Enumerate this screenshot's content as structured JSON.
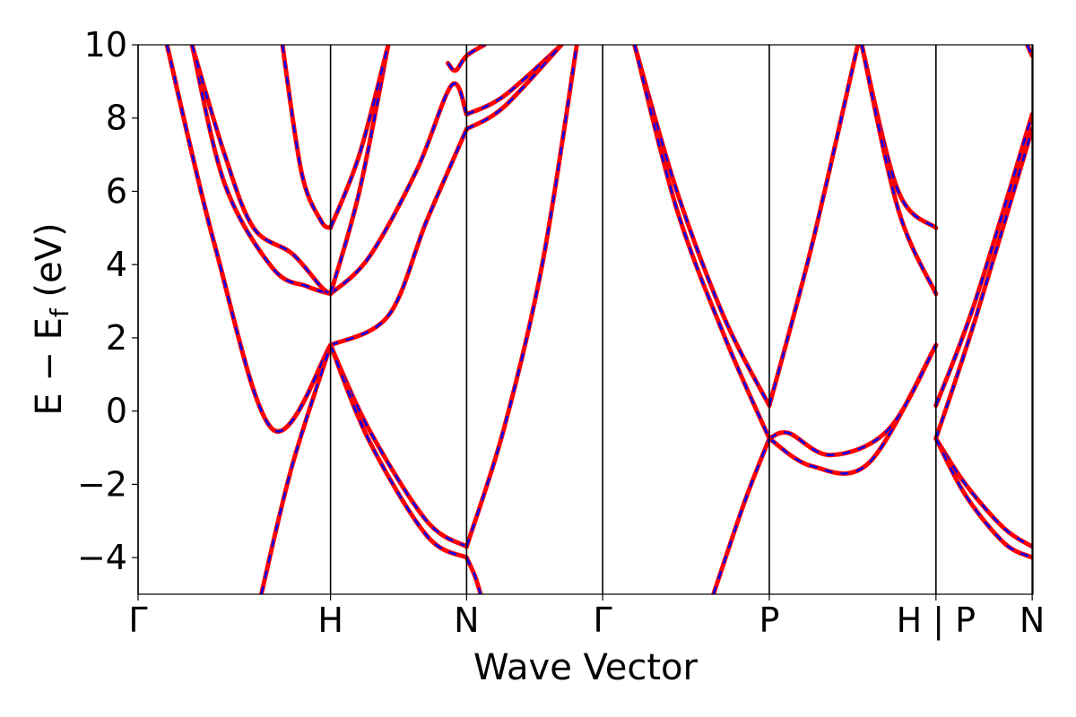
{
  "chart_data": {
    "type": "line",
    "title": "",
    "xlabel": "Wave Vector",
    "ylabel": "E − E",
    "ylabel_subscript": "f",
    "ylabel_unit": " (eV)",
    "ylim": [
      -5,
      10
    ],
    "yticks": [
      -4,
      -2,
      0,
      2,
      4,
      6,
      8,
      10
    ],
    "ytick_labels": [
      "−4",
      "−2",
      "0",
      "2",
      "4",
      "6",
      "8",
      "10"
    ],
    "xlim": [
      0,
      4.65
    ],
    "kpoints": [
      {
        "x": 0.0,
        "label": "Γ"
      },
      {
        "x": 1.0,
        "label": "H"
      },
      {
        "x": 1.707,
        "label": "N"
      },
      {
        "x": 2.414,
        "label": "Γ"
      },
      {
        "x": 3.28,
        "label": "P"
      },
      {
        "x": 4.146,
        "label": "H | P"
      },
      {
        "x": 4.646,
        "label": "N"
      }
    ],
    "colors": {
      "solid_line": "#ff0000",
      "dashed_line": "#0000ff",
      "kpoint_line": "#000000"
    },
    "legend": "none",
    "grid": false,
    "series": [
      {
        "x": [
          0.15,
          0.4,
          0.7,
          1.0
        ],
        "y": [
          10,
          4.5,
          -0.5,
          1.8
        ]
      },
      {
        "x": [
          0.15,
          0.4,
          0.7,
          1.0
        ],
        "y": [
          10,
          4.5,
          -0.5,
          1.8
        ]
      },
      {
        "x": [
          0.28,
          0.45,
          0.7,
          0.88,
          1.0
        ],
        "y": [
          10,
          6.2,
          3.9,
          3.4,
          3.2
        ]
      },
      {
        "x": [
          0.28,
          0.45,
          0.6,
          0.8,
          0.95,
          1.0
        ],
        "y": [
          10,
          7.0,
          5.0,
          4.3,
          3.4,
          3.2
        ]
      },
      {
        "x": [
          0.75,
          0.85,
          0.95,
          1.0
        ],
        "y": [
          10,
          6.5,
          5.2,
          5.0
        ]
      },
      {
        "x": [
          1.0,
          1.3,
          1.5,
          1.707
        ],
        "y": [
          1.8,
          2.6,
          5.2,
          7.7
        ]
      },
      {
        "x": [
          1.0,
          1.2,
          1.45,
          1.63,
          1.707
        ],
        "y": [
          3.2,
          4.2,
          6.6,
          8.9,
          8.1
        ]
      },
      {
        "x": [
          1.0,
          1.15,
          1.3
        ],
        "y": [
          3.2,
          6.0,
          10
        ]
      },
      {
        "x": [
          1.0,
          1.15,
          1.3
        ],
        "y": [
          5.0,
          7.0,
          10
        ]
      },
      {
        "x": [
          1.0,
          1.2,
          1.5,
          1.707
        ],
        "y": [
          1.8,
          -0.5,
          -3.0,
          -3.7
        ]
      },
      {
        "x": [
          1.0,
          1.2,
          1.5,
          1.707
        ],
        "y": [
          1.8,
          -0.8,
          -3.4,
          -4.0
        ]
      },
      {
        "x": [
          0.64,
          0.8,
          1.0
        ],
        "y": [
          -5,
          -1.5,
          1.8
        ]
      },
      {
        "x": [
          1.707,
          1.9,
          2.1,
          2.28
        ],
        "y": [
          -3.7,
          -0.5,
          4.0,
          10
        ]
      },
      {
        "x": [
          1.707,
          1.75,
          1.78
        ],
        "y": [
          -4.0,
          -4.5,
          -5.0
        ]
      },
      {
        "x": [
          1.707,
          1.9,
          2.2
        ],
        "y": [
          8.1,
          8.6,
          10
        ]
      },
      {
        "x": [
          1.707,
          1.9,
          2.2
        ],
        "y": [
          7.7,
          8.3,
          10
        ]
      },
      {
        "x": [
          1.61,
          1.65,
          1.707,
          1.8
        ],
        "y": [
          9.5,
          9.3,
          9.7,
          10
        ]
      },
      {
        "x": [
          2.58,
          2.8,
          3.05,
          3.28
        ],
        "y": [
          10,
          6.0,
          2.5,
          0.15
        ]
      },
      {
        "x": [
          2.58,
          2.8,
          3.05,
          3.28
        ],
        "y": [
          10,
          5.5,
          2.0,
          -0.75
        ]
      },
      {
        "x": [
          3.28,
          3.5,
          3.74
        ],
        "y": [
          0.15,
          4.5,
          10
        ]
      },
      {
        "x": [
          3.28,
          3.5,
          3.8,
          4.146
        ],
        "y": [
          -0.75,
          -1.5,
          -1.4,
          1.8
        ]
      },
      {
        "x": [
          3.28,
          3.38,
          3.6,
          3.9,
          4.146
        ],
        "y": [
          -0.75,
          -0.6,
          -1.2,
          -0.5,
          1.8
        ]
      },
      {
        "x": [
          2.99,
          3.15,
          3.28
        ],
        "y": [
          -5,
          -2.5,
          -0.75
        ]
      },
      {
        "x": [
          3.76,
          3.95,
          4.146
        ],
        "y": [
          10,
          6.0,
          5.0
        ]
      },
      {
        "x": [
          3.76,
          3.95,
          4.146
        ],
        "y": [
          10,
          5.5,
          3.2
        ]
      },
      {
        "x": [
          4.146,
          4.35,
          4.646
        ],
        "y": [
          0.15,
          3.0,
          8.1
        ]
      },
      {
        "x": [
          4.146,
          4.35,
          4.646
        ],
        "y": [
          -0.75,
          2.5,
          7.7
        ]
      },
      {
        "x": [
          4.146,
          4.3,
          4.5,
          4.646
        ],
        "y": [
          -0.75,
          -2.0,
          -3.2,
          -3.7
        ]
      },
      {
        "x": [
          4.146,
          4.3,
          4.5,
          4.646
        ],
        "y": [
          -0.75,
          -2.3,
          -3.6,
          -4.0
        ]
      },
      {
        "x": [
          4.62,
          4.646
        ],
        "y": [
          10,
          9.7
        ]
      }
    ]
  }
}
